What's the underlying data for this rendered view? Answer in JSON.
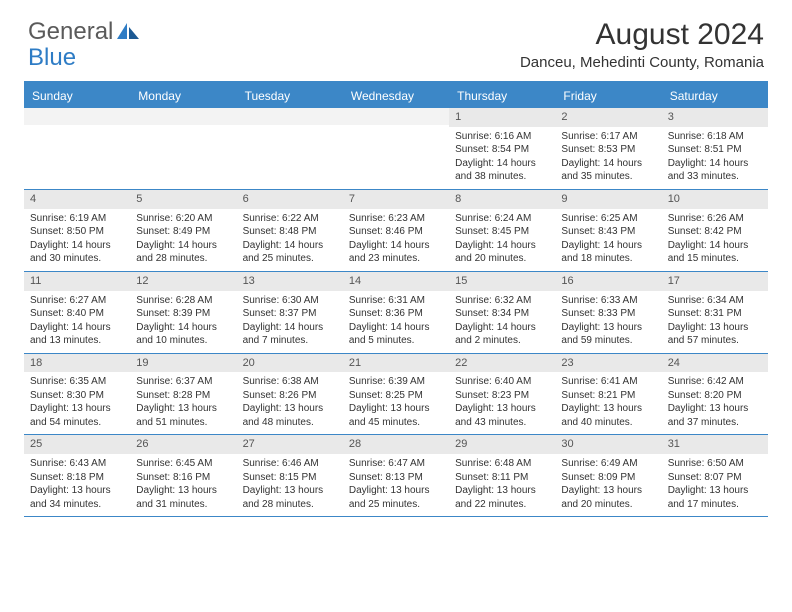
{
  "logo": {
    "text1": "General",
    "text2": "Blue"
  },
  "title": "August 2024",
  "location": "Danceu, Mehedinti County, Romania",
  "colors": {
    "header_bar": "#3c87c7",
    "day_label_bg": "#e9e9e9",
    "text": "#333333",
    "logo_gray": "#5a5a5a",
    "logo_blue": "#2e7cc5"
  },
  "day_headers": [
    "Sunday",
    "Monday",
    "Tuesday",
    "Wednesday",
    "Thursday",
    "Friday",
    "Saturday"
  ],
  "weeks": [
    [
      {
        "n": "",
        "sr": "",
        "ss": "",
        "dl": ""
      },
      {
        "n": "",
        "sr": "",
        "ss": "",
        "dl": ""
      },
      {
        "n": "",
        "sr": "",
        "ss": "",
        "dl": ""
      },
      {
        "n": "",
        "sr": "",
        "ss": "",
        "dl": ""
      },
      {
        "n": "1",
        "sr": "Sunrise: 6:16 AM",
        "ss": "Sunset: 8:54 PM",
        "dl": "Daylight: 14 hours and 38 minutes."
      },
      {
        "n": "2",
        "sr": "Sunrise: 6:17 AM",
        "ss": "Sunset: 8:53 PM",
        "dl": "Daylight: 14 hours and 35 minutes."
      },
      {
        "n": "3",
        "sr": "Sunrise: 6:18 AM",
        "ss": "Sunset: 8:51 PM",
        "dl": "Daylight: 14 hours and 33 minutes."
      }
    ],
    [
      {
        "n": "4",
        "sr": "Sunrise: 6:19 AM",
        "ss": "Sunset: 8:50 PM",
        "dl": "Daylight: 14 hours and 30 minutes."
      },
      {
        "n": "5",
        "sr": "Sunrise: 6:20 AM",
        "ss": "Sunset: 8:49 PM",
        "dl": "Daylight: 14 hours and 28 minutes."
      },
      {
        "n": "6",
        "sr": "Sunrise: 6:22 AM",
        "ss": "Sunset: 8:48 PM",
        "dl": "Daylight: 14 hours and 25 minutes."
      },
      {
        "n": "7",
        "sr": "Sunrise: 6:23 AM",
        "ss": "Sunset: 8:46 PM",
        "dl": "Daylight: 14 hours and 23 minutes."
      },
      {
        "n": "8",
        "sr": "Sunrise: 6:24 AM",
        "ss": "Sunset: 8:45 PM",
        "dl": "Daylight: 14 hours and 20 minutes."
      },
      {
        "n": "9",
        "sr": "Sunrise: 6:25 AM",
        "ss": "Sunset: 8:43 PM",
        "dl": "Daylight: 14 hours and 18 minutes."
      },
      {
        "n": "10",
        "sr": "Sunrise: 6:26 AM",
        "ss": "Sunset: 8:42 PM",
        "dl": "Daylight: 14 hours and 15 minutes."
      }
    ],
    [
      {
        "n": "11",
        "sr": "Sunrise: 6:27 AM",
        "ss": "Sunset: 8:40 PM",
        "dl": "Daylight: 14 hours and 13 minutes."
      },
      {
        "n": "12",
        "sr": "Sunrise: 6:28 AM",
        "ss": "Sunset: 8:39 PM",
        "dl": "Daylight: 14 hours and 10 minutes."
      },
      {
        "n": "13",
        "sr": "Sunrise: 6:30 AM",
        "ss": "Sunset: 8:37 PM",
        "dl": "Daylight: 14 hours and 7 minutes."
      },
      {
        "n": "14",
        "sr": "Sunrise: 6:31 AM",
        "ss": "Sunset: 8:36 PM",
        "dl": "Daylight: 14 hours and 5 minutes."
      },
      {
        "n": "15",
        "sr": "Sunrise: 6:32 AM",
        "ss": "Sunset: 8:34 PM",
        "dl": "Daylight: 14 hours and 2 minutes."
      },
      {
        "n": "16",
        "sr": "Sunrise: 6:33 AM",
        "ss": "Sunset: 8:33 PM",
        "dl": "Daylight: 13 hours and 59 minutes."
      },
      {
        "n": "17",
        "sr": "Sunrise: 6:34 AM",
        "ss": "Sunset: 8:31 PM",
        "dl": "Daylight: 13 hours and 57 minutes."
      }
    ],
    [
      {
        "n": "18",
        "sr": "Sunrise: 6:35 AM",
        "ss": "Sunset: 8:30 PM",
        "dl": "Daylight: 13 hours and 54 minutes."
      },
      {
        "n": "19",
        "sr": "Sunrise: 6:37 AM",
        "ss": "Sunset: 8:28 PM",
        "dl": "Daylight: 13 hours and 51 minutes."
      },
      {
        "n": "20",
        "sr": "Sunrise: 6:38 AM",
        "ss": "Sunset: 8:26 PM",
        "dl": "Daylight: 13 hours and 48 minutes."
      },
      {
        "n": "21",
        "sr": "Sunrise: 6:39 AM",
        "ss": "Sunset: 8:25 PM",
        "dl": "Daylight: 13 hours and 45 minutes."
      },
      {
        "n": "22",
        "sr": "Sunrise: 6:40 AM",
        "ss": "Sunset: 8:23 PM",
        "dl": "Daylight: 13 hours and 43 minutes."
      },
      {
        "n": "23",
        "sr": "Sunrise: 6:41 AM",
        "ss": "Sunset: 8:21 PM",
        "dl": "Daylight: 13 hours and 40 minutes."
      },
      {
        "n": "24",
        "sr": "Sunrise: 6:42 AM",
        "ss": "Sunset: 8:20 PM",
        "dl": "Daylight: 13 hours and 37 minutes."
      }
    ],
    [
      {
        "n": "25",
        "sr": "Sunrise: 6:43 AM",
        "ss": "Sunset: 8:18 PM",
        "dl": "Daylight: 13 hours and 34 minutes."
      },
      {
        "n": "26",
        "sr": "Sunrise: 6:45 AM",
        "ss": "Sunset: 8:16 PM",
        "dl": "Daylight: 13 hours and 31 minutes."
      },
      {
        "n": "27",
        "sr": "Sunrise: 6:46 AM",
        "ss": "Sunset: 8:15 PM",
        "dl": "Daylight: 13 hours and 28 minutes."
      },
      {
        "n": "28",
        "sr": "Sunrise: 6:47 AM",
        "ss": "Sunset: 8:13 PM",
        "dl": "Daylight: 13 hours and 25 minutes."
      },
      {
        "n": "29",
        "sr": "Sunrise: 6:48 AM",
        "ss": "Sunset: 8:11 PM",
        "dl": "Daylight: 13 hours and 22 minutes."
      },
      {
        "n": "30",
        "sr": "Sunrise: 6:49 AM",
        "ss": "Sunset: 8:09 PM",
        "dl": "Daylight: 13 hours and 20 minutes."
      },
      {
        "n": "31",
        "sr": "Sunrise: 6:50 AM",
        "ss": "Sunset: 8:07 PM",
        "dl": "Daylight: 13 hours and 17 minutes."
      }
    ]
  ]
}
